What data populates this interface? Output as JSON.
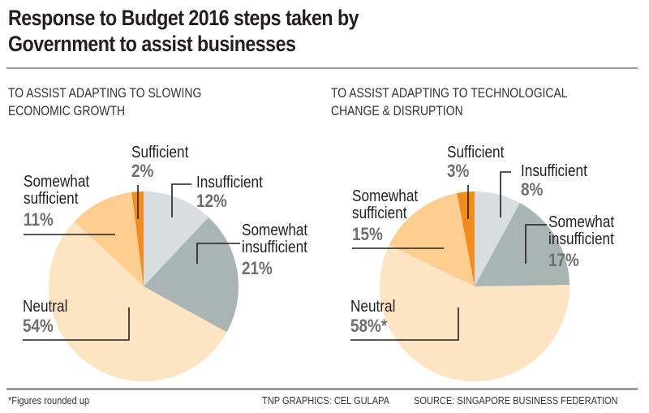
{
  "title": {
    "line1": "Response to Budget 2016 steps taken by",
    "line2": "Government to assist businesses"
  },
  "footer": {
    "note": "*Figures rounded up",
    "credit": "TNP GRAPHICS: CEL GULAPA",
    "source": "SOURCE: SINGAPORE BUSINESS FEDERATION"
  },
  "colors": {
    "insufficient": "#d8dde0",
    "somewhat_insufficient": "#a8b5b2",
    "neutral": "#fde4c2",
    "somewhat_sufficient": "#fdce8f",
    "sufficient": "#f28c1e"
  },
  "chart_data": [
    {
      "type": "pie",
      "title": "TO ASSIST ADAPTING TO SLOWING ECONOMIC GROWTH",
      "title_lines": [
        "TO ASSIST ADAPTING TO SLOWING",
        "ECONOMIC GROWTH"
      ],
      "slices": [
        {
          "key": "insufficient",
          "label": "Insufficient",
          "label_lines": [
            "Insufficient"
          ],
          "value": 12,
          "display": "12%"
        },
        {
          "key": "somewhat_insufficient",
          "label": "Somewhat insufficient",
          "label_lines": [
            "Somewhat",
            "insufficient"
          ],
          "value": 21,
          "display": "21%"
        },
        {
          "key": "neutral",
          "label": "Neutral",
          "label_lines": [
            "Neutral"
          ],
          "value": 54,
          "display": "54%"
        },
        {
          "key": "somewhat_sufficient",
          "label": "Somewhat sufficient",
          "label_lines": [
            "Somewhat",
            "sufficient"
          ],
          "value": 11,
          "display": "11%"
        },
        {
          "key": "sufficient",
          "label": "Sufficient",
          "label_lines": [
            "Sufficient"
          ],
          "value": 2,
          "display": "2%"
        }
      ]
    },
    {
      "type": "pie",
      "title": "TO ASSIST ADAPTING TO TECHNOLOGICAL CHANGE & DISRUPTION",
      "title_lines": [
        "TO ASSIST ADAPTING TO TECHNOLOGICAL",
        "CHANGE & DISRUPTION"
      ],
      "slices": [
        {
          "key": "insufficient",
          "label": "Insufficient",
          "label_lines": [
            "Insufficient"
          ],
          "value": 8,
          "display": "8%"
        },
        {
          "key": "somewhat_insufficient",
          "label": "Somewhat insufficient",
          "label_lines": [
            "Somewhat",
            "insufficient"
          ],
          "value": 17,
          "display": "17%"
        },
        {
          "key": "neutral",
          "label": "Neutral",
          "label_lines": [
            "Neutral"
          ],
          "value": 58,
          "display": "58%*"
        },
        {
          "key": "somewhat_sufficient",
          "label": "Somewhat sufficient",
          "label_lines": [
            "Somewhat",
            "sufficient"
          ],
          "value": 15,
          "display": "15%"
        },
        {
          "key": "sufficient",
          "label": "Sufficient",
          "label_lines": [
            "Sufficient"
          ],
          "value": 3,
          "display": "3%"
        }
      ]
    }
  ]
}
